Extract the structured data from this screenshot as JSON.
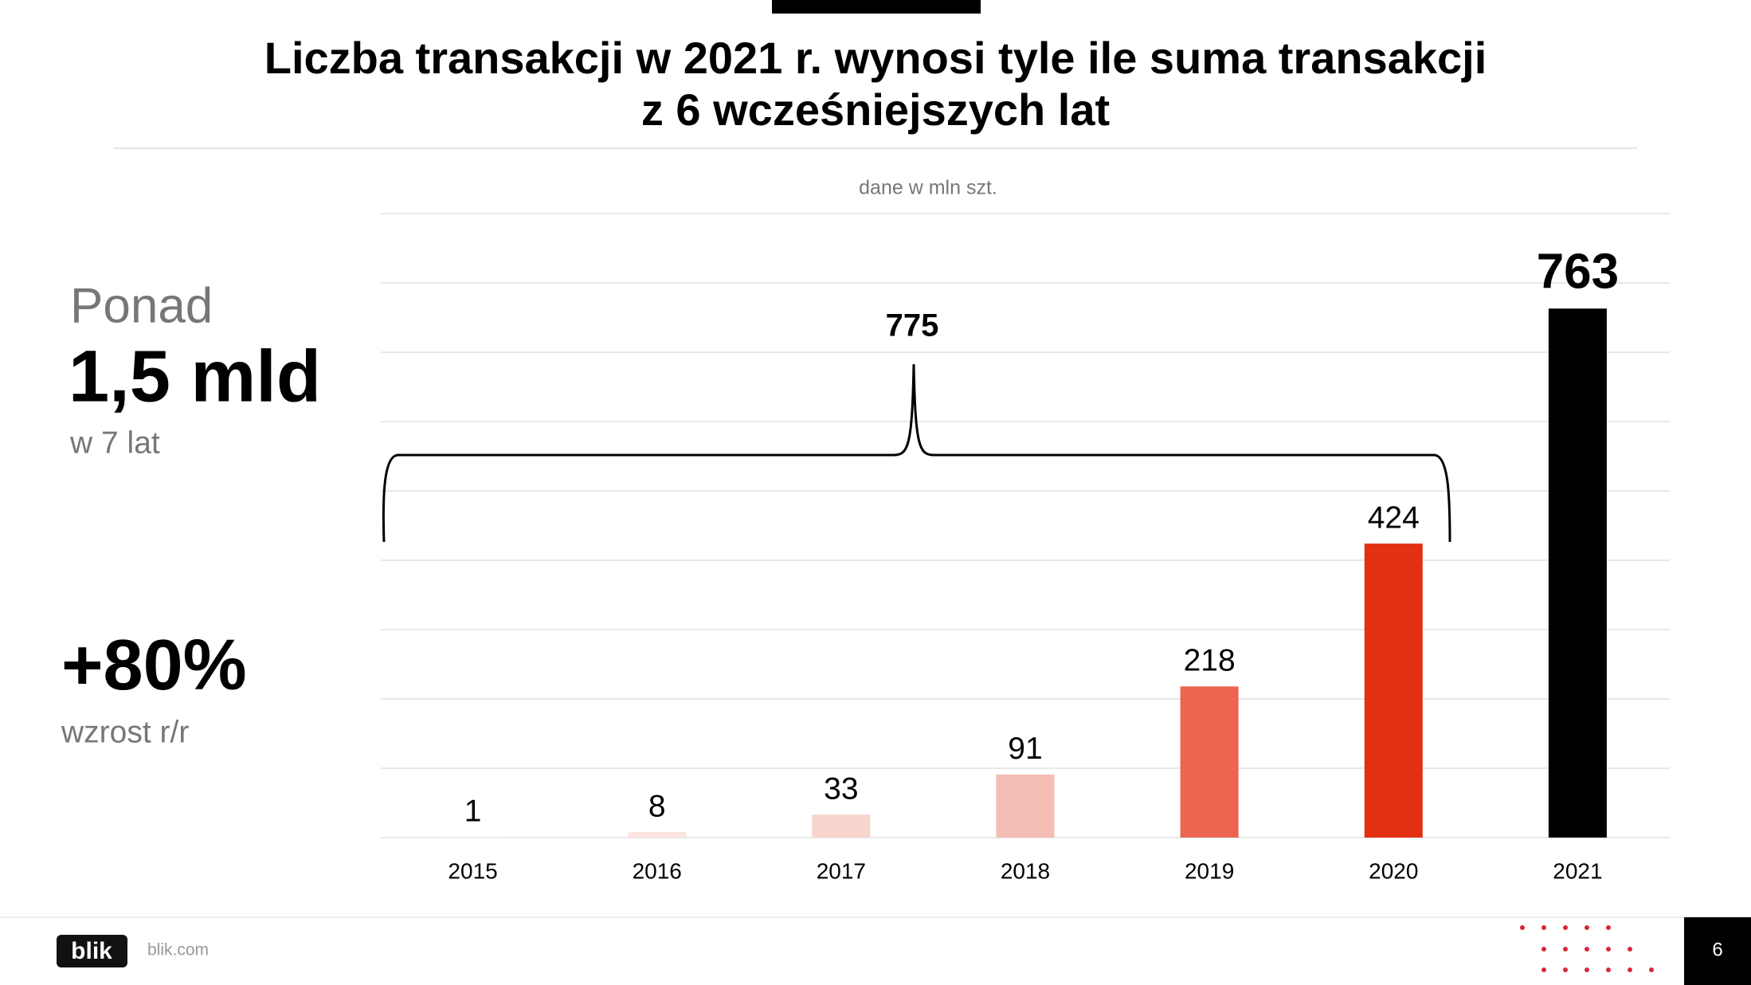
{
  "chart_data": {
    "type": "bar",
    "title": [
      "Liczba transakcji w 2021 r. wynosi tyle ile suma transakcji",
      "z 6 wcześniejszych lat"
    ],
    "subtitle": "dane w mln szt.",
    "annotation": "775",
    "categories": [
      "2015",
      "2016",
      "2017",
      "2018",
      "2019",
      "2020",
      "2021"
    ],
    "values": [
      1,
      8,
      33,
      91,
      218,
      424,
      763
    ],
    "colors": [
      "#fdeeeb",
      "#fce4e0",
      "#f9d4cc",
      "#f5beb4",
      "#ec6550",
      "#e32f12",
      "#000000"
    ],
    "ylim": [
      0,
      900
    ],
    "yticks": [
      0,
      100,
      200,
      300,
      400,
      500,
      600,
      700,
      800,
      900
    ],
    "grid": true
  },
  "sidebar": {
    "lead": "Ponad",
    "total": "1,5 mld",
    "total_note": "w 7 lat",
    "growth": "+80%",
    "growth_note": "wzrost r/r"
  },
  "footer": {
    "logo": "blik",
    "url": "blik.com",
    "page": "6"
  }
}
